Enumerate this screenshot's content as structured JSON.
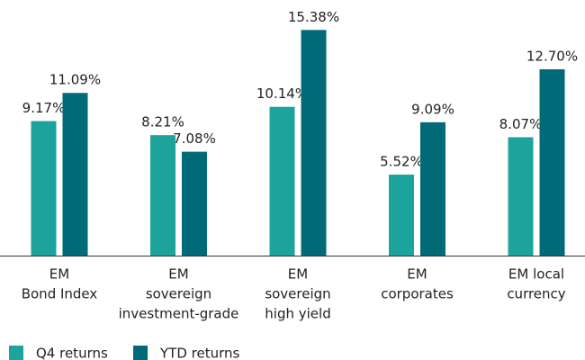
{
  "chart_data": {
    "type": "bar",
    "categories": [
      [
        "EM",
        "Bond Index"
      ],
      [
        "EM",
        "sovereign",
        "investment-grade"
      ],
      [
        "EM",
        "sovereign",
        "high yield"
      ],
      [
        "EM",
        "corporates"
      ],
      [
        "EM local",
        "currency"
      ]
    ],
    "series": [
      {
        "name": "Q4 returns",
        "color": "#1ba39c",
        "values": [
          9.17,
          8.21,
          10.14,
          5.52,
          8.07
        ],
        "value_labels": [
          "9.17%",
          "8.21%",
          "10.14%",
          "5.52%",
          "8.07%"
        ]
      },
      {
        "name": "YTD returns",
        "color": "#006b76",
        "values": [
          11.09,
          7.08,
          15.38,
          9.09,
          12.7
        ],
        "value_labels": [
          "11.09%",
          "7.08%",
          "15.38%",
          "9.09%",
          "12.70%"
        ]
      }
    ]
  }
}
